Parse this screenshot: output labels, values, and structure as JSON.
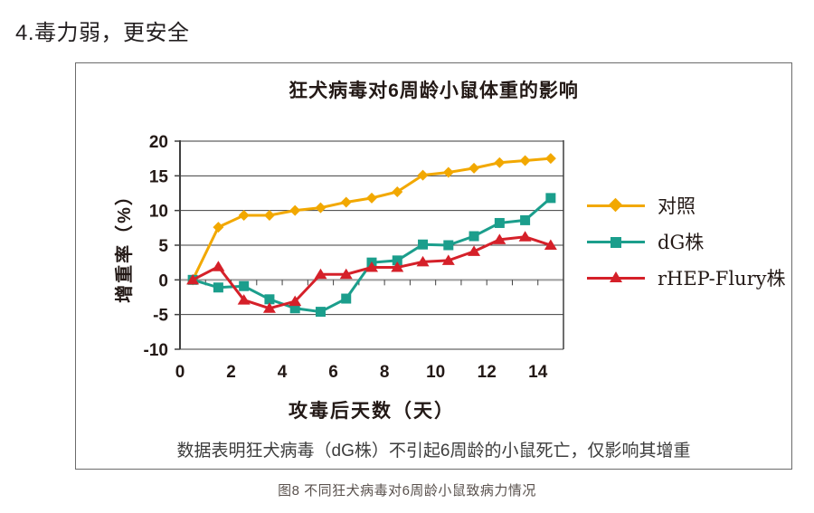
{
  "page": {
    "heading": "4.毒力弱，更安全",
    "note": "数据表明狂犬病毒（dG株）不引起6周龄的小鼠死亡，仅影响其增重",
    "caption": "图8 不同狂犬病毒对6周龄小鼠致病力情况"
  },
  "colors": {
    "text": "#231916",
    "grid": "#3f3f3f",
    "axis_gray": "#9c9c9c",
    "panel_border": "#6b6b6b",
    "control": "#F2A800",
    "dg": "#1B9E8C",
    "rhep": "#D52029"
  },
  "chart_data": {
    "type": "line",
    "title": "狂犬病毒对6周龄小鼠体重的影响",
    "xlabel": "攻毒后天数（天）",
    "ylabel": "增重率（%）",
    "x": [
      0,
      1,
      2,
      3,
      4,
      5,
      6,
      7,
      8,
      9,
      10,
      11,
      12,
      13,
      14
    ],
    "x_tick_labels": [
      0,
      2,
      4,
      6,
      8,
      10,
      12,
      14
    ],
    "y_ticks": [
      20,
      15,
      10,
      5,
      0,
      -5,
      -10
    ],
    "ylim": [
      -10,
      20
    ],
    "grid": true,
    "legend_position": "right",
    "series": [
      {
        "name": "对照",
        "color": "#F2A800",
        "marker": "diamond",
        "values": [
          0,
          7.6,
          9.3,
          9.3,
          10.0,
          10.4,
          11.2,
          11.8,
          12.7,
          15.1,
          15.5,
          16.1,
          16.9,
          17.2,
          17.5
        ]
      },
      {
        "name": "dG株",
        "color": "#1B9E8C",
        "marker": "square",
        "values": [
          0,
          -1.1,
          -0.9,
          -2.8,
          -4.1,
          -4.6,
          -2.7,
          2.5,
          2.8,
          5.1,
          5.0,
          6.3,
          8.2,
          8.6,
          11.8
        ]
      },
      {
        "name": "rHEP-Flury株",
        "color": "#D52029",
        "marker": "triangle",
        "values": [
          0,
          1.9,
          -2.9,
          -4.1,
          -3.1,
          0.8,
          0.8,
          1.8,
          1.8,
          2.6,
          2.8,
          4.1,
          5.8,
          6.2,
          5.0
        ]
      }
    ]
  }
}
